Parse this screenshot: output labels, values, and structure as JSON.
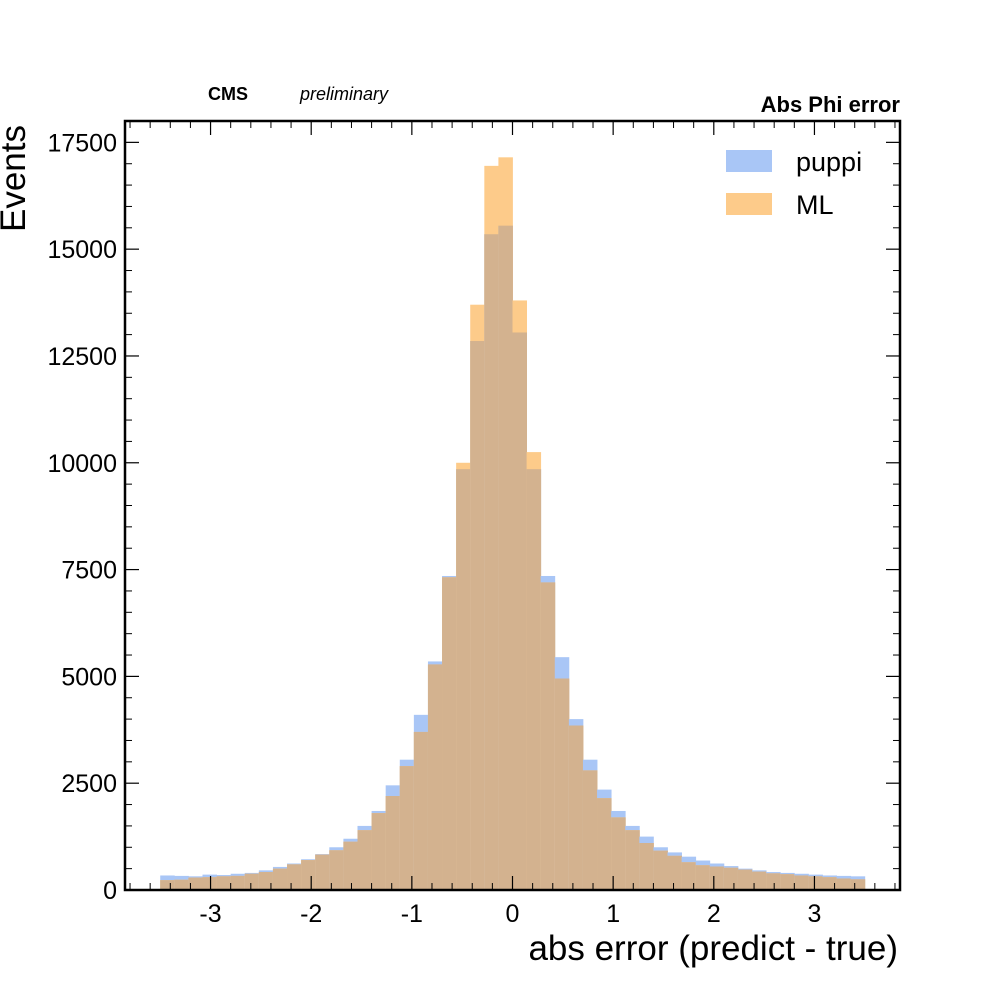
{
  "header": {
    "experiment": "CMS",
    "status": "preliminary",
    "title": "Abs Phi error"
  },
  "chart_data": {
    "type": "histogram",
    "title": "Abs Phi error",
    "xlabel": "abs error (predict - true)",
    "ylabel": "Events",
    "xlim": [
      -3.85,
      3.85
    ],
    "ylim": [
      0,
      18000
    ],
    "x_ticks": [
      -3,
      -2,
      -1,
      0,
      1,
      2,
      3
    ],
    "x_tick_labels": [
      "-3",
      "-2",
      "-1",
      "0",
      "1",
      "2",
      "3"
    ],
    "y_ticks": [
      0,
      2500,
      5000,
      7500,
      10000,
      12500,
      15000,
      17500
    ],
    "y_tick_labels": [
      "0",
      "2500",
      "5000",
      "7500",
      "10000",
      "12500",
      "15000",
      "17500"
    ],
    "bin_edges": [
      -3.5,
      -3.36,
      -3.22,
      -3.08,
      -2.94,
      -2.8,
      -2.66,
      -2.52,
      -2.38,
      -2.24,
      -2.1,
      -1.96,
      -1.82,
      -1.68,
      -1.54,
      -1.4,
      -1.26,
      -1.12,
      -0.98,
      -0.84,
      -0.7,
      -0.56,
      -0.42,
      -0.28,
      -0.14,
      0,
      0.14,
      0.28,
      0.42,
      0.56,
      0.7,
      0.84,
      0.98,
      1.12,
      1.26,
      1.4,
      1.54,
      1.68,
      1.82,
      1.96,
      2.1,
      2.24,
      2.38,
      2.52,
      2.66,
      2.8,
      2.94,
      3.08,
      3.22,
      3.36,
      3.5
    ],
    "grid": false,
    "legend_position": "top-right",
    "overlap_color": "#d3b28f",
    "series": [
      {
        "name": "puppi",
        "color": "#a9c6f6",
        "values": [
          340,
          330,
          320,
          360,
          350,
          380,
          400,
          460,
          540,
          620,
          720,
          840,
          1000,
          1200,
          1500,
          1850,
          2450,
          3050,
          4100,
          5350,
          7350,
          9850,
          12850,
          15350,
          15550,
          13050,
          9850,
          7350,
          5450,
          4000,
          3050,
          2350,
          1850,
          1500,
          1250,
          1000,
          880,
          780,
          690,
          620,
          560,
          500,
          460,
          420,
          400,
          380,
          360,
          340,
          330,
          320
        ]
      },
      {
        "name": "ML",
        "color": "#fdcb8a",
        "values": [
          230,
          240,
          290,
          300,
          320,
          330,
          380,
          420,
          500,
          600,
          700,
          830,
          930,
          1130,
          1400,
          1800,
          2200,
          2900,
          3700,
          5280,
          7320,
          10000,
          13700,
          16950,
          17150,
          13800,
          10250,
          7200,
          4950,
          3850,
          2800,
          2150,
          1700,
          1400,
          1100,
          920,
          800,
          650,
          580,
          550,
          520,
          480,
          430,
          390,
          370,
          340,
          320,
          300,
          270,
          250
        ]
      }
    ]
  }
}
